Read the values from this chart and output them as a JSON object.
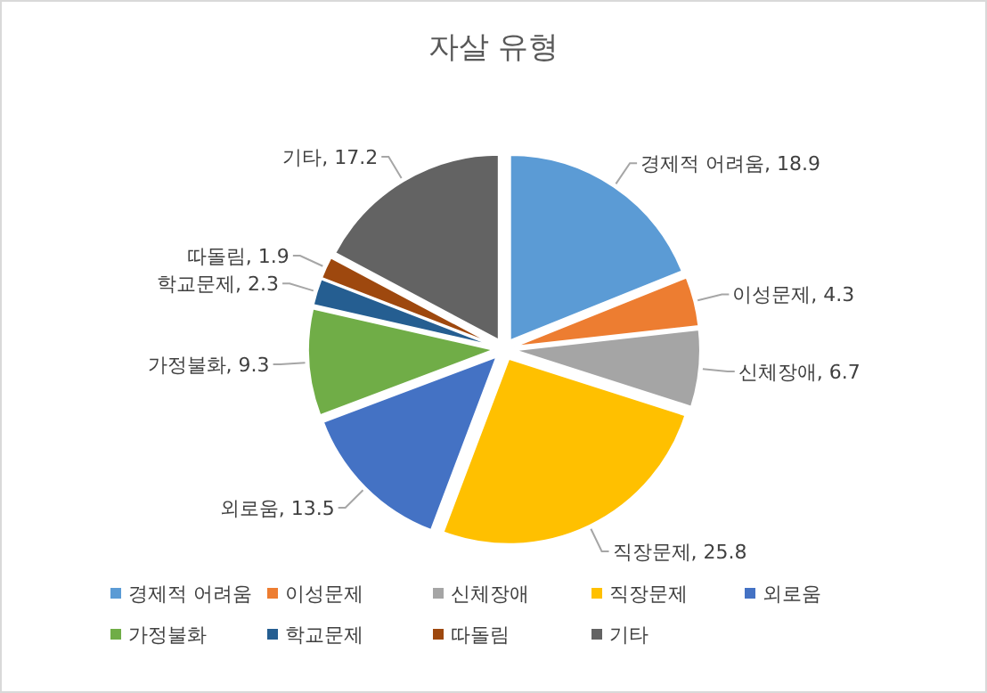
{
  "chart_data": {
    "type": "pie",
    "title": "자살 유형",
    "categories": [
      "경제적 어려움",
      "이성문제",
      "신체장애",
      "직장문제",
      "외로움",
      "가정불화",
      "학교문제",
      "따돌림",
      "기타"
    ],
    "values": [
      18.9,
      4.3,
      6.7,
      25.8,
      13.5,
      9.3,
      2.3,
      1.9,
      17.2
    ],
    "colors": [
      "#5b9bd5",
      "#ed7d31",
      "#a5a5a5",
      "#ffc000",
      "#4472c4",
      "#70ad47",
      "#255e91",
      "#9e480e",
      "#636363"
    ],
    "value_labels": [
      ", 18.9",
      ", 4.3",
      ", 6.7",
      ", 25.8",
      ", 13.5",
      ", 9.3",
      ", 2.3",
      ", 1.9",
      ", 17.2"
    ],
    "legend": "bottom"
  }
}
